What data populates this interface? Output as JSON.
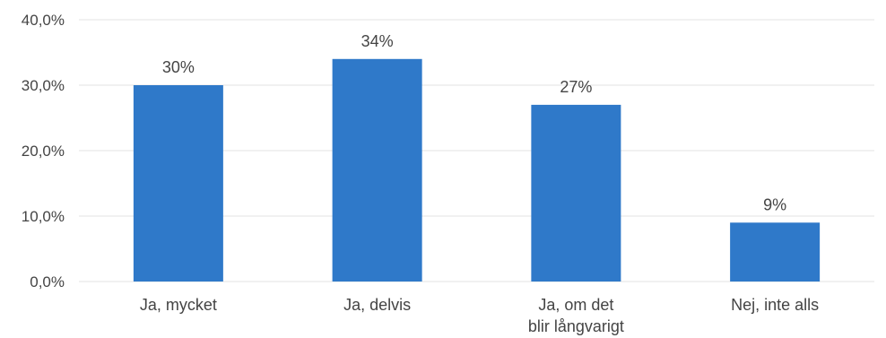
{
  "colors": {
    "bar": "#2f79c9",
    "grid": "#e3e3e3",
    "text": "#444444"
  },
  "chart_data": {
    "type": "bar",
    "categories": [
      [
        "Ja, mycket"
      ],
      [
        "Ja, delvis"
      ],
      [
        "Ja, om det",
        "blir långvarigt"
      ],
      [
        "Nej, inte alls"
      ]
    ],
    "values": [
      30,
      34,
      27,
      9
    ],
    "data_labels": [
      "30%",
      "34%",
      "27%",
      "9%"
    ],
    "yticks": [
      0,
      10,
      20,
      30,
      40
    ],
    "ytick_labels": [
      "0,0%",
      "10,0%",
      "20,0%",
      "30,0%",
      "40,0%"
    ],
    "ylim": [
      0,
      40
    ],
    "grid": true,
    "legend": "none"
  }
}
